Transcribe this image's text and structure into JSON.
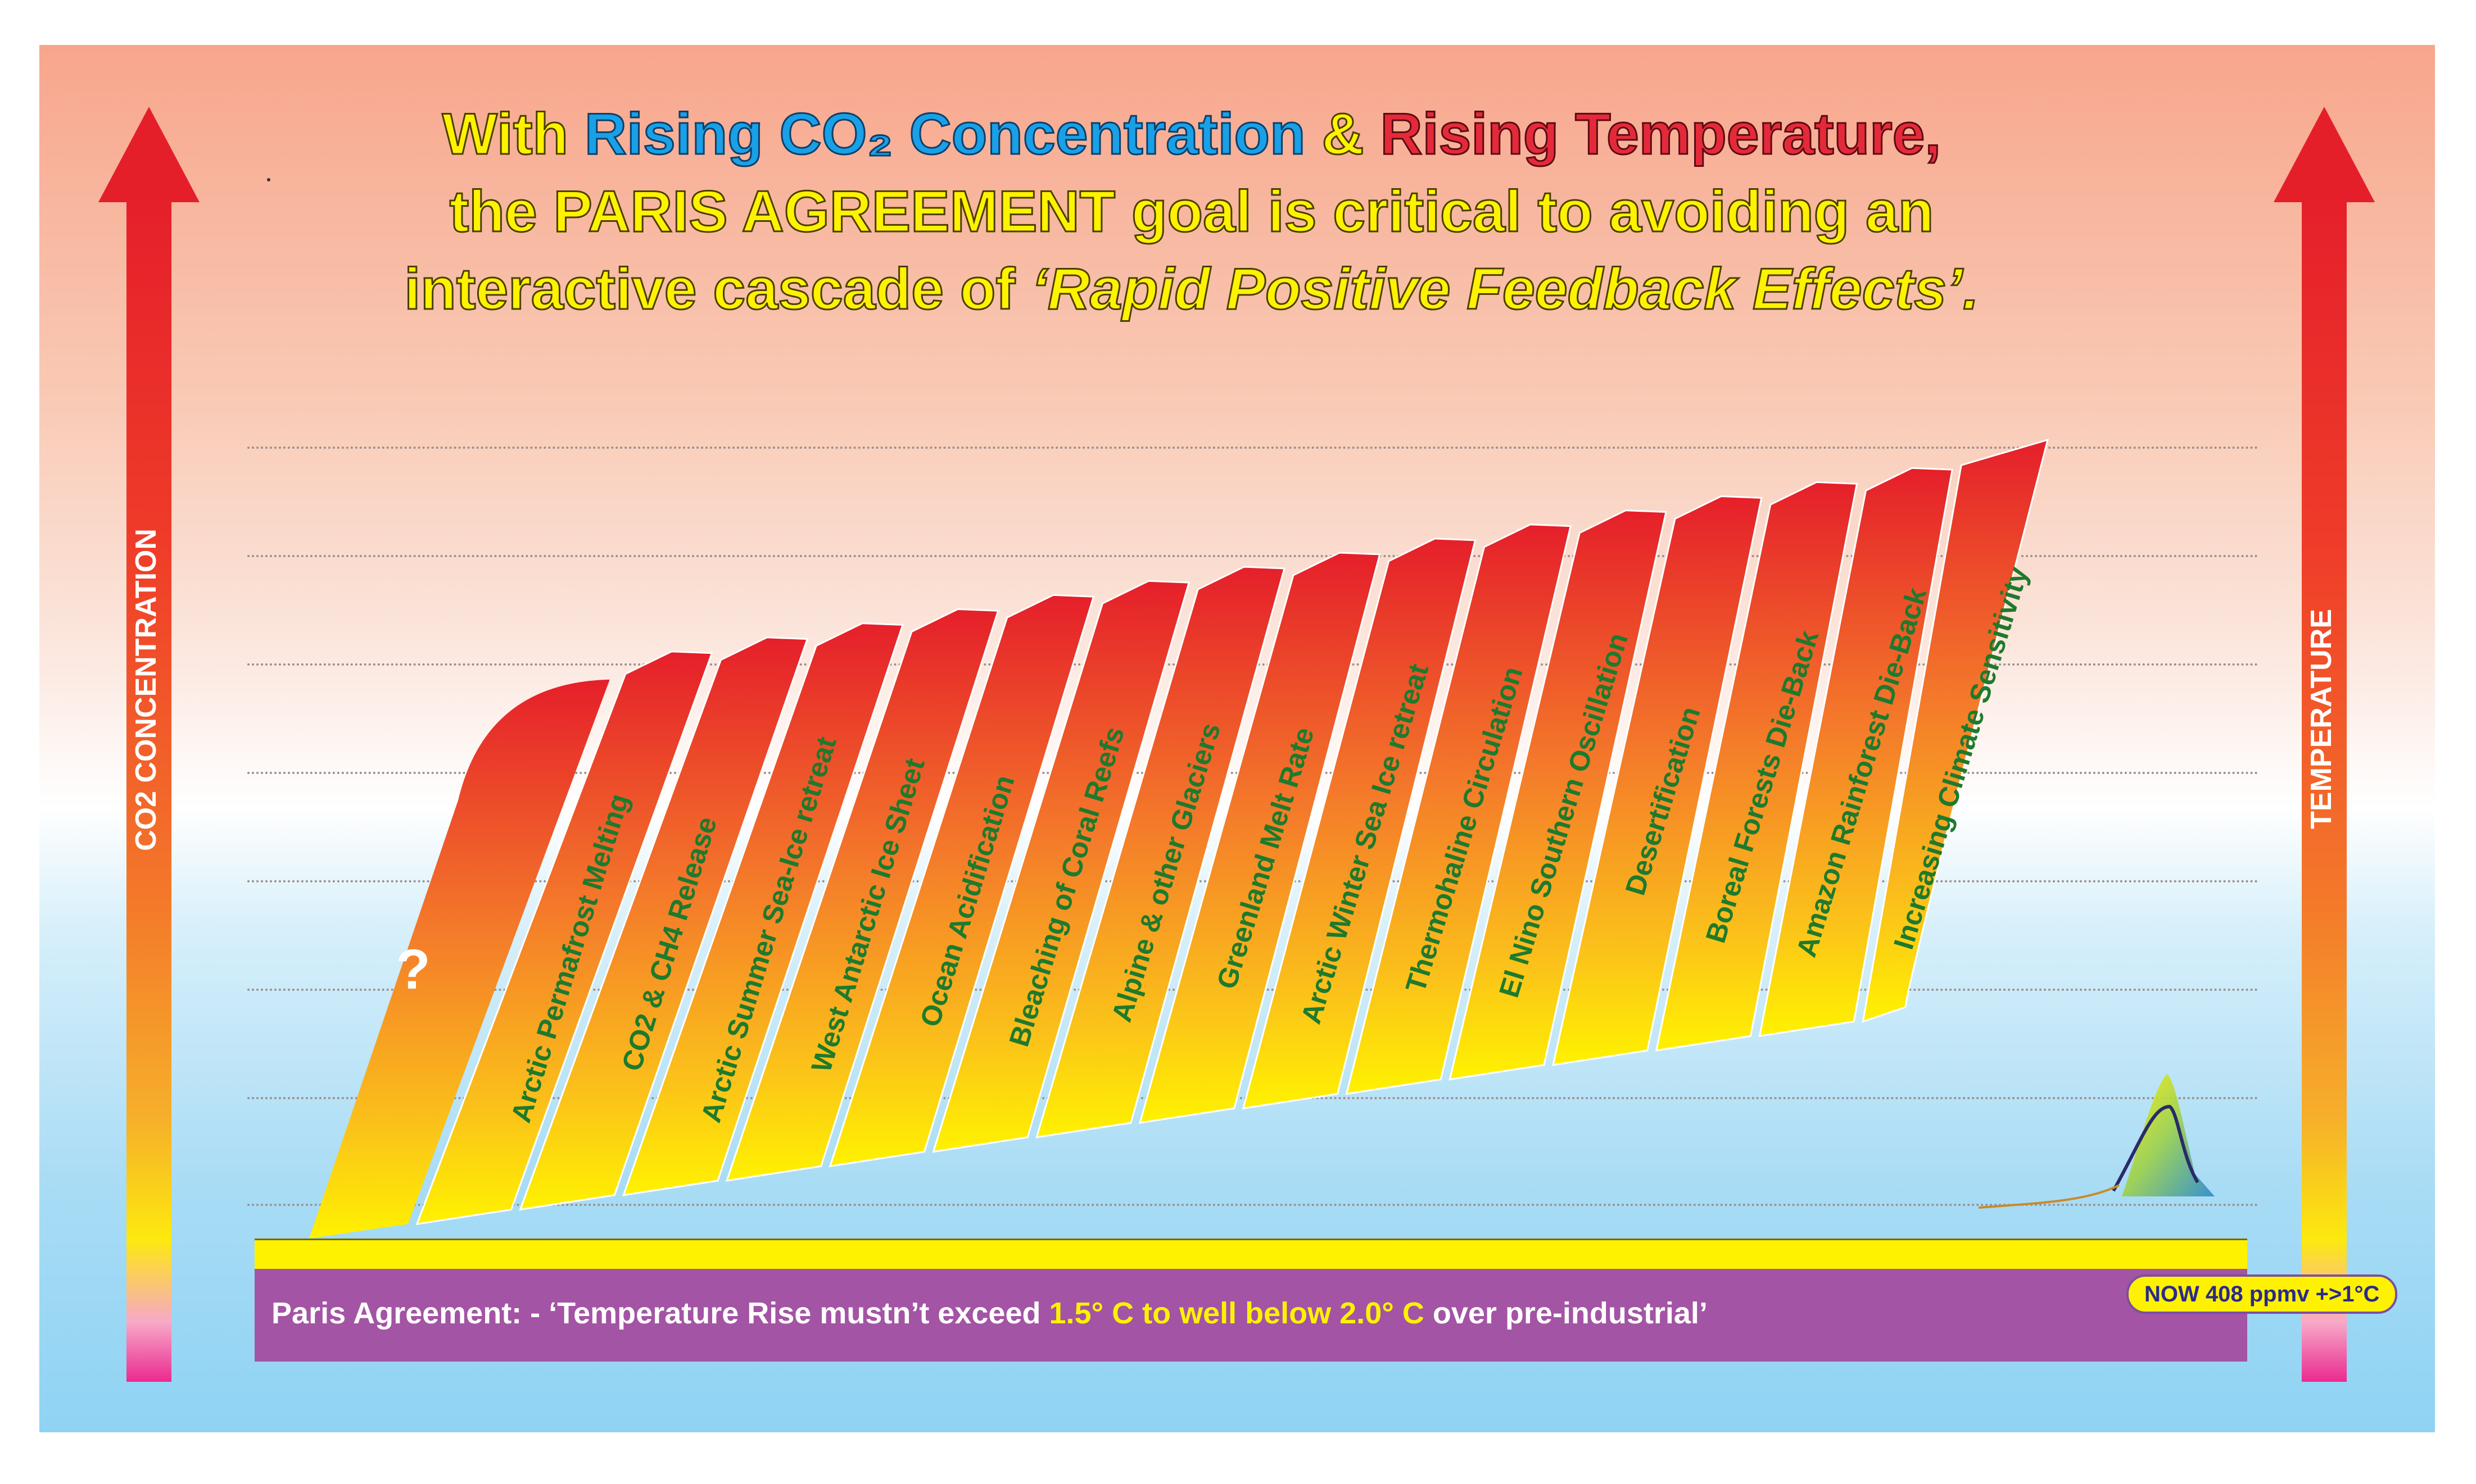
{
  "title": {
    "line1_a": "With ",
    "line1_b": "Rising CO₂ Concentration",
    "line1_c": " & ",
    "line1_d": "Rising Temperature,",
    "line2": "the PARIS AGREEMENT goal is critical to avoiding an",
    "line3_a": "interactive cascade of  ",
    "line3_b": "‘Rapid Positive Feedback Effects’."
  },
  "left_axis_label": "CO2 CONCENTRATION",
  "right_axis_label": "TEMPERATURE",
  "question_mark": "?",
  "effects": [
    "Arctic Permafrost Melting",
    "CO2 & CH4 Release",
    "Arctic Summer Sea-Ice retreat",
    "West Antarctic Ice Sheet",
    "Ocean Acidification",
    "Bleaching of Coral Reefs",
    "Alpine & other Glaciers",
    "Greenland Melt Rate",
    "Arctic Winter Sea Ice retreat",
    "Thermohaline Circulation",
    "El Nino Southern Oscillation",
    "Desertification",
    "Boreal Forests Die-Back",
    "Amazon Rainforest Die-Back",
    "Increasing Climate Sensitivity"
  ],
  "paris": {
    "prefix": "Paris  Agreement: -  ‘Temperature Rise mustn’t exceed ",
    "highlight": "1.5° C to well below 2.0° C",
    "suffix": " over pre-industrial’"
  },
  "now_badge": "NOW 408 ppmv +>1°C",
  "colors": {
    "panel_top": "#f7a68c",
    "panel_bottom": "#8fd3f4",
    "step_top": "#e51f2a",
    "step_bottom": "#fff200",
    "effect_text": "#1e7a2c",
    "paris_bar": "#a354a4",
    "highlight": "#fff200"
  },
  "icons": {
    "arrow": "up-arrow-icon",
    "logo": "curve-logo-icon"
  }
}
